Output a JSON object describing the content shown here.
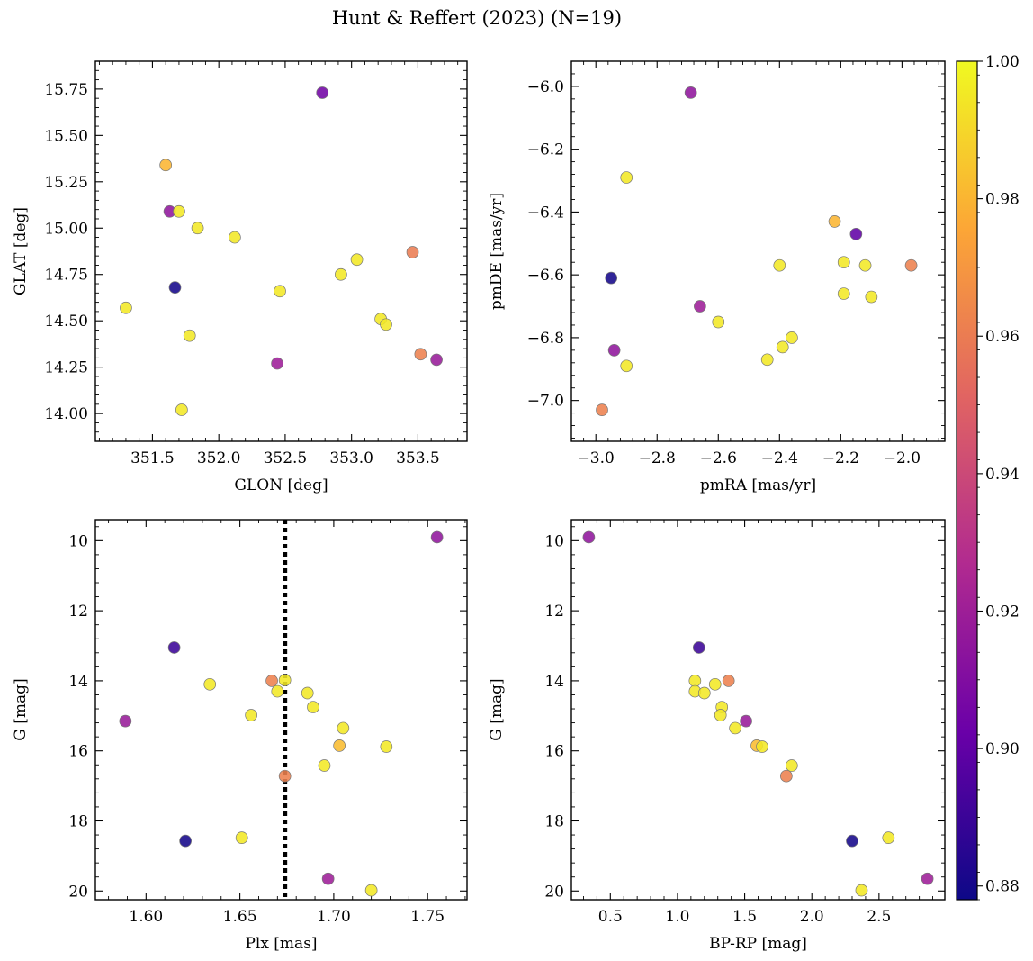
{
  "title": "Hunt & Reffert (2023) (N=19)",
  "chart_data": [
    {
      "type": "scatter",
      "name": "glon-glat",
      "xlabel": "GLON [deg]",
      "ylabel": "GLAT [deg]",
      "xlim": [
        351.07,
        353.87
      ],
      "ylim": [
        13.85,
        15.9
      ],
      "xticks": [
        351.5,
        352.0,
        352.5,
        353.0,
        353.5
      ],
      "xtick_labels": [
        "351.5",
        "352.0",
        "352.5",
        "353.0",
        "353.5"
      ],
      "yticks": [
        14.0,
        14.25,
        14.5,
        14.75,
        15.0,
        15.25,
        15.5,
        15.75
      ],
      "ytick_labels": [
        "14.00",
        "14.25",
        "14.50",
        "14.75",
        "15.00",
        "15.25",
        "15.50",
        "15.75"
      ],
      "points": [
        {
          "x": 351.3,
          "y": 14.57,
          "c": 0.995
        },
        {
          "x": 351.6,
          "y": 15.34,
          "c": 0.98
        },
        {
          "x": 351.63,
          "y": 15.09,
          "c": 0.915
        },
        {
          "x": 351.7,
          "y": 15.09,
          "c": 0.995
        },
        {
          "x": 351.67,
          "y": 14.68,
          "c": 0.88
        },
        {
          "x": 351.72,
          "y": 14.02,
          "c": 0.995
        },
        {
          "x": 351.78,
          "y": 14.42,
          "c": 0.995
        },
        {
          "x": 351.84,
          "y": 15.0,
          "c": 0.995
        },
        {
          "x": 352.12,
          "y": 14.95,
          "c": 0.995
        },
        {
          "x": 352.44,
          "y": 14.27,
          "c": 0.92
        },
        {
          "x": 352.46,
          "y": 14.66,
          "c": 0.995
        },
        {
          "x": 352.78,
          "y": 15.73,
          "c": 0.905
        },
        {
          "x": 352.92,
          "y": 14.75,
          "c": 0.995
        },
        {
          "x": 353.04,
          "y": 14.83,
          "c": 0.995
        },
        {
          "x": 353.22,
          "y": 14.51,
          "c": 0.995
        },
        {
          "x": 353.26,
          "y": 14.48,
          "c": 0.995
        },
        {
          "x": 353.46,
          "y": 14.87,
          "c": 0.96
        },
        {
          "x": 353.52,
          "y": 14.32,
          "c": 0.962
        },
        {
          "x": 353.64,
          "y": 14.29,
          "c": 0.918
        }
      ]
    },
    {
      "type": "scatter",
      "name": "pmra-pmde",
      "xlabel": "pmRA [mas/yr]",
      "ylabel": "pmDE [mas/yr]",
      "xlim": [
        -3.08,
        -1.86
      ],
      "ylim": [
        -7.13,
        -5.92
      ],
      "xticks": [
        -3.0,
        -2.8,
        -2.6,
        -2.4,
        -2.2,
        -2.0
      ],
      "xtick_labels": [
        "−3.0",
        "−2.8",
        "−2.6",
        "−2.4",
        "−2.2",
        "−2.0"
      ],
      "yticks": [
        -7.0,
        -6.8,
        -6.6,
        -6.4,
        -6.2,
        -6.0
      ],
      "ytick_labels": [
        "−7.0",
        "−6.8",
        "−6.6",
        "−6.4",
        "−6.2",
        "−6.0"
      ],
      "points": [
        {
          "x": -2.69,
          "y": -6.02,
          "c": 0.915
        },
        {
          "x": -2.9,
          "y": -6.29,
          "c": 0.995
        },
        {
          "x": -2.22,
          "y": -6.43,
          "c": 0.98
        },
        {
          "x": -2.15,
          "y": -6.47,
          "c": 0.9
        },
        {
          "x": -2.4,
          "y": -6.57,
          "c": 0.995
        },
        {
          "x": -2.19,
          "y": -6.56,
          "c": 0.995
        },
        {
          "x": -2.12,
          "y": -6.57,
          "c": 0.995
        },
        {
          "x": -1.97,
          "y": -6.57,
          "c": 0.962
        },
        {
          "x": -2.95,
          "y": -6.61,
          "c": 0.88
        },
        {
          "x": -2.19,
          "y": -6.66,
          "c": 0.995
        },
        {
          "x": -2.1,
          "y": -6.67,
          "c": 0.995
        },
        {
          "x": -2.66,
          "y": -6.7,
          "c": 0.92
        },
        {
          "x": -2.6,
          "y": -6.75,
          "c": 0.995
        },
        {
          "x": -2.36,
          "y": -6.8,
          "c": 0.995
        },
        {
          "x": -2.39,
          "y": -6.83,
          "c": 0.995
        },
        {
          "x": -2.94,
          "y": -6.84,
          "c": 0.915
        },
        {
          "x": -2.44,
          "y": -6.87,
          "c": 0.995
        },
        {
          "x": -2.9,
          "y": -6.89,
          "c": 0.995
        },
        {
          "x": -2.98,
          "y": -7.03,
          "c": 0.962
        }
      ]
    },
    {
      "type": "scatter",
      "name": "plx-g",
      "xlabel": "Plx [mas]",
      "ylabel": "G [mag]",
      "xlim": [
        1.573,
        1.771
      ],
      "ylim": [
        20.25,
        9.4
      ],
      "y_inverted": true,
      "vline_x": 1.674,
      "xticks": [
        1.6,
        1.65,
        1.7,
        1.75
      ],
      "xtick_labels": [
        "1.60",
        "1.65",
        "1.70",
        "1.75"
      ],
      "yticks": [
        10,
        12,
        14,
        16,
        18,
        20
      ],
      "ytick_labels": [
        "10",
        "12",
        "14",
        "16",
        "18",
        "20"
      ],
      "points": [
        {
          "x": 1.755,
          "y": 9.9,
          "c": 0.915
        },
        {
          "x": 1.615,
          "y": 13.05,
          "c": 0.89
        },
        {
          "x": 1.634,
          "y": 14.1,
          "c": 0.995
        },
        {
          "x": 1.667,
          "y": 14.0,
          "c": 0.962
        },
        {
          "x": 1.67,
          "y": 14.3,
          "c": 0.995
        },
        {
          "x": 1.674,
          "y": 13.98,
          "c": 0.995
        },
        {
          "x": 1.686,
          "y": 14.35,
          "c": 0.995
        },
        {
          "x": 1.689,
          "y": 14.75,
          "c": 0.995
        },
        {
          "x": 1.656,
          "y": 14.98,
          "c": 0.995
        },
        {
          "x": 1.589,
          "y": 15.15,
          "c": 0.918
        },
        {
          "x": 1.705,
          "y": 15.35,
          "c": 0.995
        },
        {
          "x": 1.703,
          "y": 15.85,
          "c": 0.982
        },
        {
          "x": 1.728,
          "y": 15.88,
          "c": 0.995
        },
        {
          "x": 1.695,
          "y": 16.42,
          "c": 0.995
        },
        {
          "x": 1.674,
          "y": 16.72,
          "c": 0.962
        },
        {
          "x": 1.651,
          "y": 18.48,
          "c": 0.995
        },
        {
          "x": 1.621,
          "y": 18.57,
          "c": 0.88
        },
        {
          "x": 1.697,
          "y": 19.65,
          "c": 0.92
        },
        {
          "x": 1.72,
          "y": 19.98,
          "c": 0.995
        }
      ]
    },
    {
      "type": "scatter",
      "name": "bprp-g",
      "xlabel": "BP-RP [mag]",
      "ylabel": "G [mag]",
      "xlim": [
        0.21,
        2.99
      ],
      "ylim": [
        20.25,
        9.4
      ],
      "y_inverted": true,
      "xticks": [
        0.5,
        1.0,
        1.5,
        2.0,
        2.5
      ],
      "xtick_labels": [
        "0.5",
        "1.0",
        "1.5",
        "2.0",
        "2.5"
      ],
      "yticks": [
        10,
        12,
        14,
        16,
        18,
        20
      ],
      "ytick_labels": [
        "10",
        "12",
        "14",
        "16",
        "18",
        "20"
      ],
      "points": [
        {
          "x": 0.34,
          "y": 9.9,
          "c": 0.915
        },
        {
          "x": 1.16,
          "y": 13.05,
          "c": 0.89
        },
        {
          "x": 1.13,
          "y": 14.0,
          "c": 0.995
        },
        {
          "x": 1.28,
          "y": 14.1,
          "c": 0.995
        },
        {
          "x": 1.38,
          "y": 14.0,
          "c": 0.962
        },
        {
          "x": 1.13,
          "y": 14.3,
          "c": 0.995
        },
        {
          "x": 1.2,
          "y": 14.35,
          "c": 0.995
        },
        {
          "x": 1.33,
          "y": 14.75,
          "c": 0.995
        },
        {
          "x": 1.32,
          "y": 14.98,
          "c": 0.995
        },
        {
          "x": 1.51,
          "y": 15.15,
          "c": 0.918
        },
        {
          "x": 1.43,
          "y": 15.35,
          "c": 0.995
        },
        {
          "x": 1.59,
          "y": 15.85,
          "c": 0.982
        },
        {
          "x": 1.63,
          "y": 15.88,
          "c": 0.995
        },
        {
          "x": 1.85,
          "y": 16.42,
          "c": 0.995
        },
        {
          "x": 1.81,
          "y": 16.72,
          "c": 0.962
        },
        {
          "x": 2.3,
          "y": 18.57,
          "c": 0.88
        },
        {
          "x": 2.57,
          "y": 18.48,
          "c": 0.995
        },
        {
          "x": 2.86,
          "y": 19.65,
          "c": 0.92
        },
        {
          "x": 2.37,
          "y": 19.98,
          "c": 0.995
        }
      ]
    }
  ],
  "colorbar": {
    "colormap": "plasma",
    "vmin": 0.878,
    "vmax": 1.0,
    "ticks": [
      0.88,
      0.9,
      0.92,
      0.94,
      0.96,
      0.98,
      1.0
    ],
    "tick_labels": [
      "0.88",
      "0.90",
      "0.92",
      "0.94",
      "0.96",
      "0.98",
      "1.00"
    ],
    "stops": [
      "#0d0887",
      "#6a00a8",
      "#b12a90",
      "#e16462",
      "#fca636",
      "#f0f921"
    ]
  }
}
